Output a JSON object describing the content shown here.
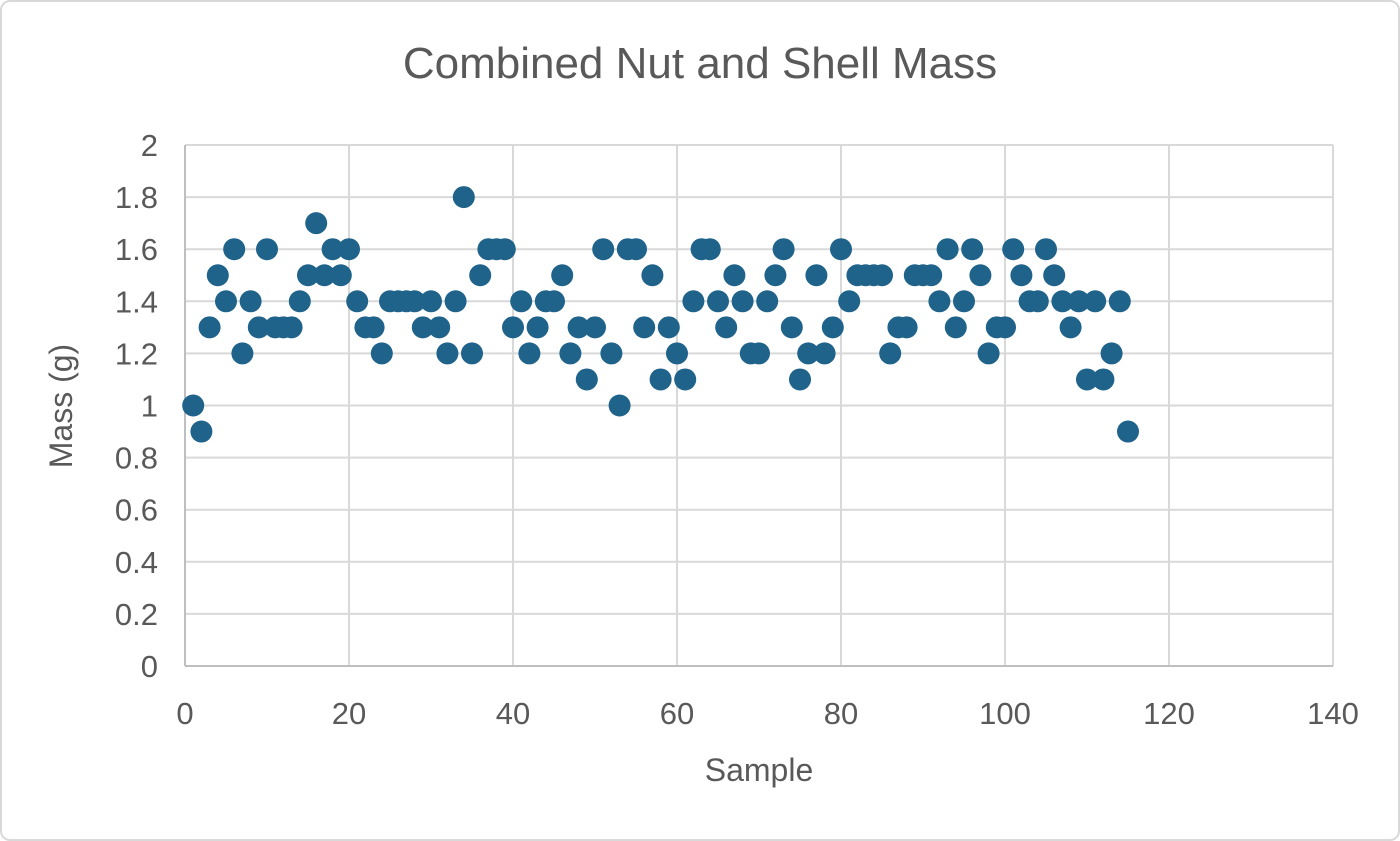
{
  "chart": {
    "title": "Combined Nut and Shell Mass",
    "xlabel": "Sample",
    "ylabel": "Mass (g)"
  },
  "chart_data": {
    "type": "scatter",
    "title": "Combined Nut and Shell Mass",
    "xlabel": "Sample",
    "ylabel": "Mass (g)",
    "xlim": [
      0,
      140
    ],
    "ylim": [
      0,
      2
    ],
    "xticks": [
      0,
      20,
      40,
      60,
      80,
      100,
      120,
      140
    ],
    "yticks": [
      0,
      0.2,
      0.4,
      0.6,
      0.8,
      1,
      1.2,
      1.4,
      1.6,
      1.8,
      2
    ],
    "grid": true,
    "legend": "none",
    "marker_color": "#1F628A",
    "gridline_color": "#D9D9D9",
    "axis_color": "#BFBFBF",
    "text_color": "#595959",
    "series": [
      {
        "name": "Combined Nut and Shell Mass",
        "x": [
          1,
          2,
          3,
          4,
          5,
          6,
          7,
          8,
          9,
          10,
          11,
          12,
          13,
          14,
          15,
          16,
          17,
          18,
          19,
          20,
          21,
          22,
          23,
          24,
          25,
          26,
          27,
          28,
          29,
          30,
          31,
          32,
          33,
          34,
          35,
          36,
          37,
          38,
          39,
          40,
          41,
          42,
          43,
          44,
          45,
          46,
          47,
          48,
          49,
          50,
          51,
          52,
          53,
          54,
          55,
          56,
          57,
          58,
          59,
          60,
          61,
          62,
          63,
          64,
          65,
          66,
          67,
          68,
          69,
          70,
          71,
          72,
          73,
          74,
          75,
          76,
          77,
          78,
          79,
          80,
          81,
          82,
          83,
          84,
          85,
          86,
          87,
          88,
          89,
          90,
          91,
          92,
          93,
          94,
          95,
          96,
          97,
          98,
          99,
          100,
          101,
          102,
          103,
          104,
          105,
          106,
          107,
          108,
          109,
          110,
          111,
          112,
          113,
          114,
          115
        ],
        "y": [
          1.0,
          0.9,
          1.3,
          1.5,
          1.4,
          1.6,
          1.2,
          1.4,
          1.3,
          1.6,
          1.3,
          1.3,
          1.3,
          1.4,
          1.5,
          1.7,
          1.5,
          1.6,
          1.5,
          1.6,
          1.4,
          1.3,
          1.3,
          1.2,
          1.4,
          1.4,
          1.4,
          1.4,
          1.3,
          1.4,
          1.3,
          1.2,
          1.4,
          1.8,
          1.2,
          1.5,
          1.6,
          1.6,
          1.6,
          1.3,
          1.4,
          1.2,
          1.3,
          1.4,
          1.4,
          1.5,
          1.2,
          1.3,
          1.1,
          1.3,
          1.6,
          1.2,
          1.0,
          1.6,
          1.6,
          1.3,
          1.5,
          1.1,
          1.3,
          1.2,
          1.1,
          1.4,
          1.6,
          1.6,
          1.4,
          1.3,
          1.5,
          1.4,
          1.2,
          1.2,
          1.4,
          1.5,
          1.6,
          1.3,
          1.1,
          1.2,
          1.5,
          1.2,
          1.3,
          1.6,
          1.4,
          1.5,
          1.5,
          1.5,
          1.5,
          1.2,
          1.3,
          1.3,
          1.5,
          1.5,
          1.5,
          1.4,
          1.6,
          1.3,
          1.4,
          1.6,
          1.5,
          1.2,
          1.3,
          1.3,
          1.6,
          1.5,
          1.4,
          1.4,
          1.6,
          1.5,
          1.4,
          1.3,
          1.4,
          1.1,
          1.4,
          1.1,
          1.2,
          1.4,
          0.9
        ]
      }
    ]
  }
}
